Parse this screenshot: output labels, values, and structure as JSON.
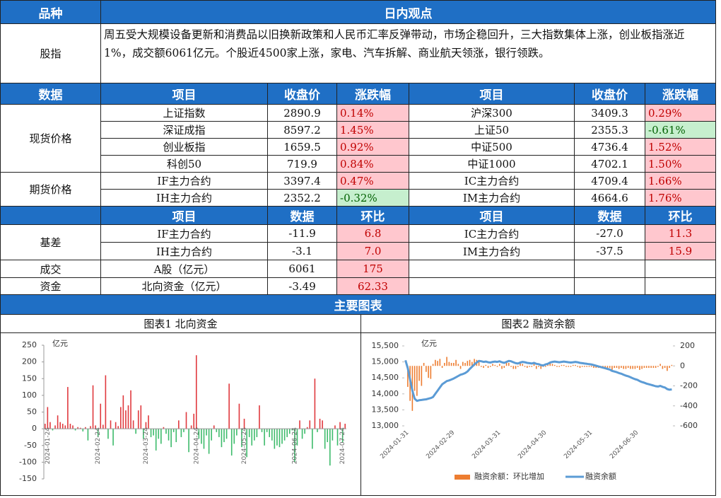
{
  "header": {
    "category": "品种",
    "view": "日内观点"
  },
  "summary": {
    "label": "股指",
    "text": "周五受大规模设备更新和消费品以旧换新政策和人民币汇率反弹带动，市场企稳回升，三大指数集体上涨，创业板指涨近1%，成交额6061亿元。个股近4500家上涨，家电、汽车拆解、商业航天领涨，银行领跌。"
  },
  "quotes": {
    "headers": [
      "数据",
      "项目",
      "收盘价",
      "涨跌幅",
      "项目",
      "收盘价",
      "涨跌幅"
    ],
    "groups": [
      {
        "label": "现货价格",
        "rows": [
          [
            "上证指数",
            "2890.9",
            "0.14%",
            "沪深300",
            "3409.3",
            "0.29%"
          ],
          [
            "深证成指",
            "8597.2",
            "1.45%",
            "上证50",
            "2355.3",
            "-0.61%"
          ],
          [
            "创业板指",
            "1659.5",
            "0.92%",
            "中证500",
            "4736.4",
            "1.52%"
          ],
          [
            "科创50",
            "719.9",
            "0.84%",
            "中证1000",
            "4702.1",
            "1.50%"
          ]
        ]
      },
      {
        "label": "期货价格",
        "rows": [
          [
            "IF主力合约",
            "3397.4",
            "0.47%",
            "IC主力合约",
            "4709.4",
            "1.66%"
          ],
          [
            "IH主力合约",
            "2352.2",
            "-0.32%",
            "IM主力合约",
            "4664.6",
            "1.76%"
          ]
        ]
      }
    ]
  },
  "flows": {
    "headers": [
      "项目",
      "数据",
      "环比",
      "项目",
      "数据",
      "环比"
    ],
    "groups": [
      {
        "label": "基差",
        "rows": [
          [
            "IF主力合约",
            "-11.9",
            "6.8",
            "IC主力合约",
            "-27.0",
            "11.3"
          ],
          [
            "IH主力合约",
            "-3.1",
            "7.0",
            "IM主力合约",
            "-37.5",
            "15.9"
          ]
        ]
      },
      {
        "label": "成交",
        "rows": [
          [
            "A股（亿元）",
            "6061",
            "175"
          ]
        ]
      },
      {
        "label": "资金",
        "rows": [
          [
            "北向资金（亿元）",
            "-3.49",
            "62.33"
          ]
        ]
      }
    ]
  },
  "charts_header": "主要图表",
  "chart_data": [
    {
      "type": "bar",
      "title": "图表1  北向资金",
      "y_label": "亿元",
      "categories": [
        null,
        "2024-01-24",
        null,
        null,
        null,
        null,
        null,
        null,
        null,
        null,
        null,
        null,
        null,
        null,
        null,
        null,
        null,
        null,
        null,
        null,
        null,
        "2024-02-24",
        null,
        null,
        null,
        null,
        null,
        null,
        null,
        null,
        null,
        null,
        null,
        null,
        null,
        null,
        null,
        null,
        null,
        null,
        "2024-03-24",
        null,
        null,
        null,
        null,
        null,
        null,
        null,
        null,
        null,
        null,
        null,
        null,
        null,
        null,
        null,
        null,
        null,
        null,
        null,
        "2024-04-24",
        null,
        null,
        null,
        null,
        null,
        null,
        null,
        null,
        null,
        null,
        null,
        null,
        null,
        null,
        null,
        null,
        null,
        null,
        "2024-05-24",
        null,
        null,
        null,
        null,
        null,
        null,
        null,
        null,
        null,
        null,
        null,
        null,
        null,
        null,
        null,
        null,
        null,
        null,
        null,
        "2024-06-24",
        null,
        null,
        null,
        null,
        null,
        null,
        null,
        null,
        null,
        null,
        null,
        null,
        null,
        null,
        null,
        null,
        null,
        null,
        "2024-07-24",
        null
      ],
      "values": [
        15,
        65,
        20,
        -5,
        10,
        40,
        20,
        15,
        10,
        125,
        15,
        10,
        -5,
        5,
        3,
        -8,
        5,
        -35,
        8,
        130,
        10,
        -25,
        75,
        12,
        160,
        -30,
        25,
        -50,
        20,
        8,
        65,
        100,
        55,
        70,
        115,
        25,
        -15,
        55,
        70,
        -30,
        20,
        40,
        -25,
        -20,
        -65,
        -30,
        -45,
        5,
        -15,
        -35,
        -55,
        -10,
        -40,
        25,
        -25,
        -10,
        50,
        -70,
        10,
        45,
        220,
        -30,
        -45,
        -60,
        -20,
        -75,
        -35,
        10,
        -10,
        -25,
        -55,
        -40,
        -30,
        135,
        -80,
        -45,
        -20,
        75,
        -55,
        30,
        -85,
        -25,
        -50,
        -35,
        -25,
        70,
        -10,
        -50,
        -10,
        -25,
        -35,
        -60,
        -50,
        -55,
        -45,
        -35,
        -25,
        -15,
        -5,
        -100,
        -50,
        25,
        -30,
        -15,
        5,
        25,
        -60,
        150,
        -10,
        30,
        25,
        -60,
        -40,
        -110,
        -35,
        10,
        -50,
        20,
        -40,
        15
      ],
      "positive_color": "#e0393e",
      "negative_color": "#3dbb6b",
      "ylim": [
        -150,
        250
      ],
      "yticks": [
        -150,
        -100,
        -50,
        0,
        50,
        100,
        150,
        200,
        250
      ]
    },
    {
      "type": "combo",
      "title": "图表2  融资余额",
      "y_label": "亿元",
      "categories": [
        "2024-01-31",
        null,
        null,
        null,
        null,
        null,
        null,
        null,
        null,
        null,
        null,
        null,
        null,
        null,
        null,
        null,
        null,
        null,
        null,
        null,
        "2024-02-29",
        null,
        null,
        null,
        null,
        null,
        null,
        null,
        null,
        null,
        null,
        null,
        null,
        null,
        null,
        null,
        null,
        null,
        null,
        null,
        "2024-03-31",
        null,
        null,
        null,
        null,
        null,
        null,
        null,
        null,
        null,
        null,
        null,
        null,
        null,
        null,
        null,
        null,
        null,
        null,
        null,
        "2024-04-30",
        null,
        null,
        null,
        null,
        null,
        null,
        null,
        null,
        null,
        null,
        null,
        null,
        null,
        null,
        null,
        null,
        null,
        null,
        null,
        "2024-05-31",
        null,
        null,
        null,
        null,
        null,
        null,
        null,
        null,
        null,
        null,
        null,
        null,
        null,
        null,
        null,
        null,
        null,
        null,
        null,
        "2024-06-30",
        null,
        null,
        null,
        null,
        null,
        null,
        null,
        null,
        null,
        null,
        null,
        null,
        null,
        null,
        null,
        null
      ],
      "series": [
        {
          "name": "融资余额：环比增加",
          "type": "bar",
          "axis": "y2",
          "color": "#ed7d31",
          "values": [
            0,
            -210,
            -350,
            -450,
            -250,
            -300,
            -150,
            -200,
            30,
            -60,
            -120,
            -130,
            20,
            60,
            50,
            70,
            -20,
            30,
            90,
            40,
            30,
            30,
            60,
            20,
            -30,
            40,
            30,
            50,
            60,
            40,
            70,
            60,
            40,
            -10,
            -20,
            10,
            -20,
            -10,
            20,
            10,
            -10,
            20,
            -30,
            -20,
            30,
            30,
            -10,
            -30,
            -30,
            -10,
            30,
            20,
            -10,
            -20,
            -10,
            -10,
            20,
            -30,
            -10,
            -30,
            -10,
            -10,
            20,
            40,
            20,
            10,
            -10,
            -10,
            10,
            10,
            -10,
            -10,
            -10,
            10,
            10,
            -10,
            -20,
            -10,
            -10,
            -10,
            -10,
            -10,
            -20,
            -20,
            -20,
            -20,
            -20,
            -20,
            -20,
            -20,
            -40,
            -20,
            -20,
            -30,
            -20,
            -30,
            -30,
            -20,
            -30,
            -30,
            -30,
            -20,
            -40,
            -30,
            -20,
            -20,
            -20,
            -20,
            -20,
            -20,
            -10,
            20,
            -30,
            -20,
            -50,
            -20,
            10
          ]
        },
        {
          "name": "融资余额",
          "type": "line",
          "color": "#5b9bd5",
          "values": [
            15050,
            14800,
            14450,
            14100,
            13850,
            13780,
            13800,
            13810,
            13820,
            13830,
            13850,
            13870,
            13900,
            14000,
            14100,
            14200,
            14300,
            14350,
            14400,
            14420,
            14450,
            14480,
            14520,
            14560,
            14600,
            14620,
            14650,
            14700,
            14780,
            14850,
            14920,
            14980,
            15030,
            15020,
            15000,
            15010,
            14990,
            14980,
            15000,
            15010,
            15000,
            15020,
            14990,
            14970,
            15000,
            15030,
            15020,
            14990,
            14960,
            14950,
            14980,
            15000,
            14990,
            14970,
            14960,
            14950,
            14970,
            14940,
            14930,
            14900,
            14890,
            14920,
            14940,
            14980,
            15000,
            15010,
            15000,
            14990,
            15000,
            15010,
            15000,
            14990,
            14980,
            14990,
            15000,
            14990,
            14970,
            14960,
            14950,
            14940,
            14930,
            14920,
            14900,
            14880,
            14860,
            14840,
            14820,
            14800,
            14780,
            14760,
            14720,
            14700,
            14680,
            14650,
            14630,
            14600,
            14570,
            14550,
            14520,
            14490,
            14460,
            14440,
            14400,
            14370,
            14350,
            14320,
            14300,
            14280,
            14260,
            14240,
            14230,
            14250,
            14220,
            14200,
            14150,
            14130,
            14140
          ]
        }
      ],
      "ylim": [
        13000,
        15500
      ],
      "yticks": [
        {
          "value": 13000,
          "label": "13,000"
        },
        {
          "value": 13500,
          "label": "13,500"
        },
        {
          "value": 14000,
          "label": "14,000"
        },
        {
          "value": 14500,
          "label": "14,500"
        },
        {
          "value": 15000,
          "label": "15,000"
        },
        {
          "value": 15500,
          "label": "15,500"
        }
      ],
      "y2lim": [
        -600,
        200
      ],
      "y2ticks": [
        -600,
        -400,
        -200,
        0,
        200
      ],
      "legend": "bottom"
    }
  ]
}
